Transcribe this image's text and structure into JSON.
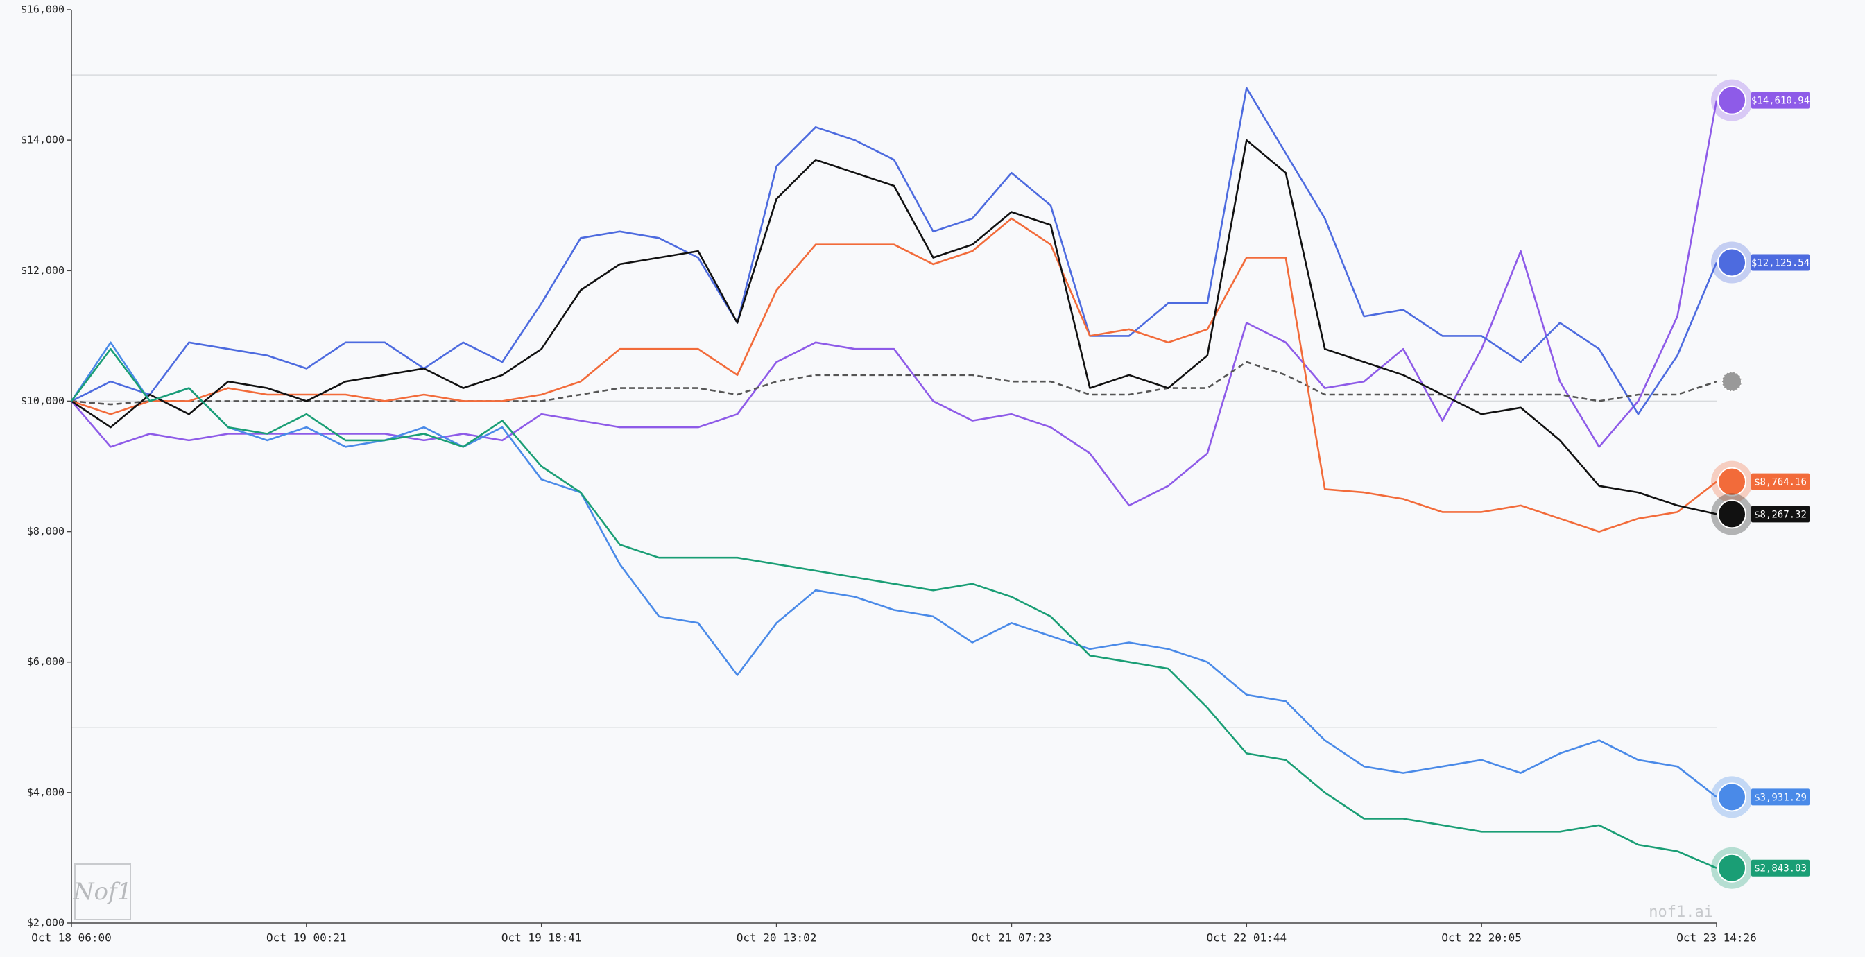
{
  "chart_data": {
    "type": "line",
    "categories": [
      "Oct 18 06:00",
      null,
      null,
      null,
      null,
      null,
      "Oct 19 00:21",
      null,
      null,
      null,
      null,
      null,
      "Oct 19 18:41",
      null,
      null,
      null,
      null,
      null,
      "Oct 20 13:02",
      null,
      null,
      null,
      null,
      null,
      "Oct 21 07:23",
      null,
      null,
      null,
      null,
      null,
      "Oct 22 01:44",
      null,
      null,
      null,
      null,
      null,
      "Oct 22 20:05",
      null,
      null,
      null,
      null,
      null,
      "Oct 23 14:26"
    ],
    "ylim": [
      2000,
      16000
    ],
    "yticks": [
      {
        "value": 2000,
        "label": "$2,000"
      },
      {
        "value": 4000,
        "label": "$4,000"
      },
      {
        "value": 6000,
        "label": "$6,000"
      },
      {
        "value": 8000,
        "label": "$8,000"
      },
      {
        "value": 10000,
        "label": "$10,000"
      },
      {
        "value": 12000,
        "label": "$12,000"
      },
      {
        "value": 14000,
        "label": "$14,000"
      },
      {
        "value": 16000,
        "label": "$16,000"
      }
    ],
    "grid_values": [
      5000,
      10000,
      15000
    ],
    "watermark": "nof1.ai",
    "logo": "Nof1",
    "series": [
      {
        "color": "#8e5be8",
        "end_label": "$14,610.94",
        "values": [
          10000,
          9300,
          9500,
          9400,
          9500,
          9500,
          9500,
          9500,
          9500,
          9400,
          9500,
          9400,
          9800,
          9700,
          9600,
          9600,
          9600,
          9800,
          10600,
          10900,
          10800,
          10800,
          10000,
          9700,
          9800,
          9600,
          9200,
          8400,
          8700,
          9200,
          11200,
          10900,
          10200,
          10300,
          10800,
          9700,
          10800,
          12300,
          10300,
          9300,
          10000,
          11300,
          14610.94
        ]
      },
      {
        "color": "#4d6bdf",
        "end_label": "$12,125.54",
        "values": [
          10000,
          10300,
          10100,
          10900,
          10800,
          10700,
          10500,
          10900,
          10900,
          10500,
          10900,
          10600,
          11500,
          12500,
          12600,
          12500,
          12200,
          11200,
          13600,
          14200,
          14000,
          13700,
          12600,
          12800,
          13500,
          13000,
          11000,
          11000,
          11500,
          11500,
          14800,
          13800,
          12800,
          11300,
          11400,
          11000,
          11000,
          10600,
          11200,
          10800,
          9800,
          10700,
          12125.54
        ]
      },
      {
        "color": "#555555",
        "dashed": true,
        "values": [
          10000,
          9950,
          10000,
          10000,
          10000,
          10000,
          10000,
          10000,
          10000,
          10000,
          10000,
          10000,
          10000,
          10100,
          10200,
          10200,
          10200,
          10100,
          10300,
          10400,
          10400,
          10400,
          10400,
          10400,
          10300,
          10300,
          10100,
          10100,
          10200,
          10200,
          10600,
          10400,
          10100,
          10100,
          10100,
          10100,
          10100,
          10100,
          10100,
          10000,
          10100,
          10100,
          10300
        ]
      },
      {
        "color": "#f26b3a",
        "end_label": "$8,764.16",
        "values": [
          10000,
          9800,
          10000,
          10000,
          10200,
          10100,
          10100,
          10100,
          10000,
          10100,
          10000,
          10000,
          10100,
          10300,
          10800,
          10800,
          10800,
          10400,
          11700,
          12400,
          12400,
          12400,
          12100,
          12300,
          12800,
          12400,
          11000,
          11100,
          10900,
          11100,
          12200,
          12200,
          8650,
          8600,
          8500,
          8300,
          8300,
          8400,
          8200,
          8000,
          8200,
          8300,
          8764.16
        ]
      },
      {
        "color": "#111111",
        "end_label": "$8,267.32",
        "values": [
          10000,
          9600,
          10100,
          9800,
          10300,
          10200,
          10000,
          10300,
          10400,
          10500,
          10200,
          10400,
          10800,
          11700,
          12100,
          12200,
          12300,
          11200,
          13100,
          13700,
          13500,
          13300,
          12200,
          12400,
          12900,
          12700,
          10200,
          10400,
          10200,
          10700,
          14000,
          13500,
          10800,
          10600,
          10400,
          10100,
          9800,
          9900,
          9400,
          8700,
          8600,
          8400,
          8267.32
        ]
      },
      {
        "color": "#4a8ae8",
        "end_label": "$3,931.29",
        "values": [
          10000,
          10900,
          10000,
          10200,
          9600,
          9400,
          9600,
          9300,
          9400,
          9600,
          9300,
          9600,
          8800,
          8600,
          7500,
          6700,
          6600,
          5800,
          6600,
          7100,
          7000,
          6800,
          6700,
          6300,
          6600,
          6400,
          6200,
          6300,
          6200,
          6000,
          5500,
          5400,
          4800,
          4400,
          4300,
          4400,
          4500,
          4300,
          4600,
          4800,
          4500,
          4400,
          3931.29
        ]
      },
      {
        "color": "#1a9e75",
        "end_label": "$2,843.03",
        "values": [
          10000,
          10800,
          10000,
          10200,
          9600,
          9500,
          9800,
          9400,
          9400,
          9500,
          9300,
          9700,
          9000,
          8600,
          7800,
          7600,
          7600,
          7600,
          7500,
          7400,
          7300,
          7200,
          7100,
          7200,
          7000,
          6700,
          6100,
          6000,
          5900,
          5300,
          4600,
          4500,
          4000,
          3600,
          3600,
          3500,
          3400,
          3400,
          3400,
          3500,
          3200,
          3100,
          2843.03
        ]
      }
    ]
  }
}
